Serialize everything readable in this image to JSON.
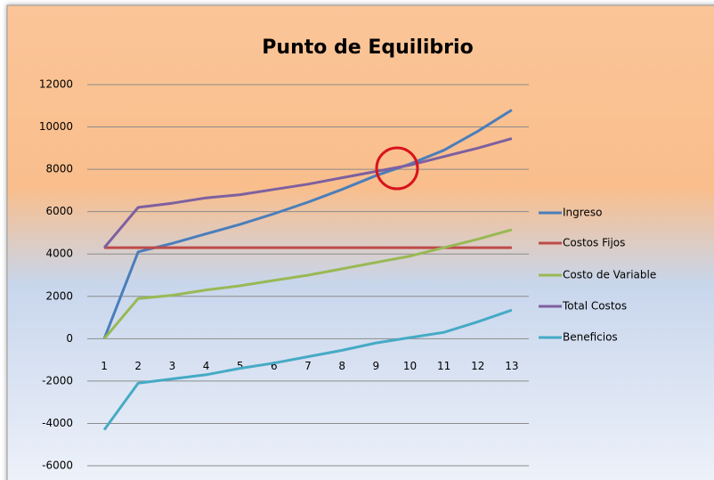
{
  "chart_data": {
    "type": "line",
    "title": "Punto de Equilibrio",
    "categories": [
      "1",
      "2",
      "3",
      "4",
      "5",
      "6",
      "7",
      "8",
      "9",
      "10",
      "11",
      "12",
      "13"
    ],
    "series": [
      {
        "name": "Ingreso",
        "color": "#4a7ebb",
        "values": [
          0,
          4100,
          4500,
          4950,
          5400,
          5900,
          6450,
          7050,
          7700,
          8250,
          8900,
          9800,
          10800
        ]
      },
      {
        "name": "Costos Fijos",
        "color": "#be4b48",
        "values": [
          4300,
          4300,
          4300,
          4300,
          4300,
          4300,
          4300,
          4300,
          4300,
          4300,
          4300,
          4300,
          4300
        ]
      },
      {
        "name": "Costo de Variable",
        "color": "#98b954",
        "values": [
          0,
          1900,
          2050,
          2300,
          2500,
          2750,
          3000,
          3300,
          3600,
          3900,
          4300,
          4700,
          5150
        ]
      },
      {
        "name": "Total Costos",
        "color": "#7d60a0",
        "values": [
          4300,
          6200,
          6400,
          6650,
          6800,
          7050,
          7300,
          7600,
          7900,
          8200,
          8600,
          9000,
          9450
        ]
      },
      {
        "name": "Beneficios",
        "color": "#46aac5",
        "values": [
          -4300,
          -2100,
          -1900,
          -1700,
          -1400,
          -1150,
          -850,
          -550,
          -200,
          50,
          300,
          800,
          1350
        ]
      }
    ],
    "ylim": [
      -6000,
      12000
    ],
    "yticks": [
      -6000,
      -4000,
      -2000,
      0,
      2000,
      4000,
      6000,
      8000,
      10000,
      12000
    ],
    "grid": true,
    "legend": "right"
  }
}
